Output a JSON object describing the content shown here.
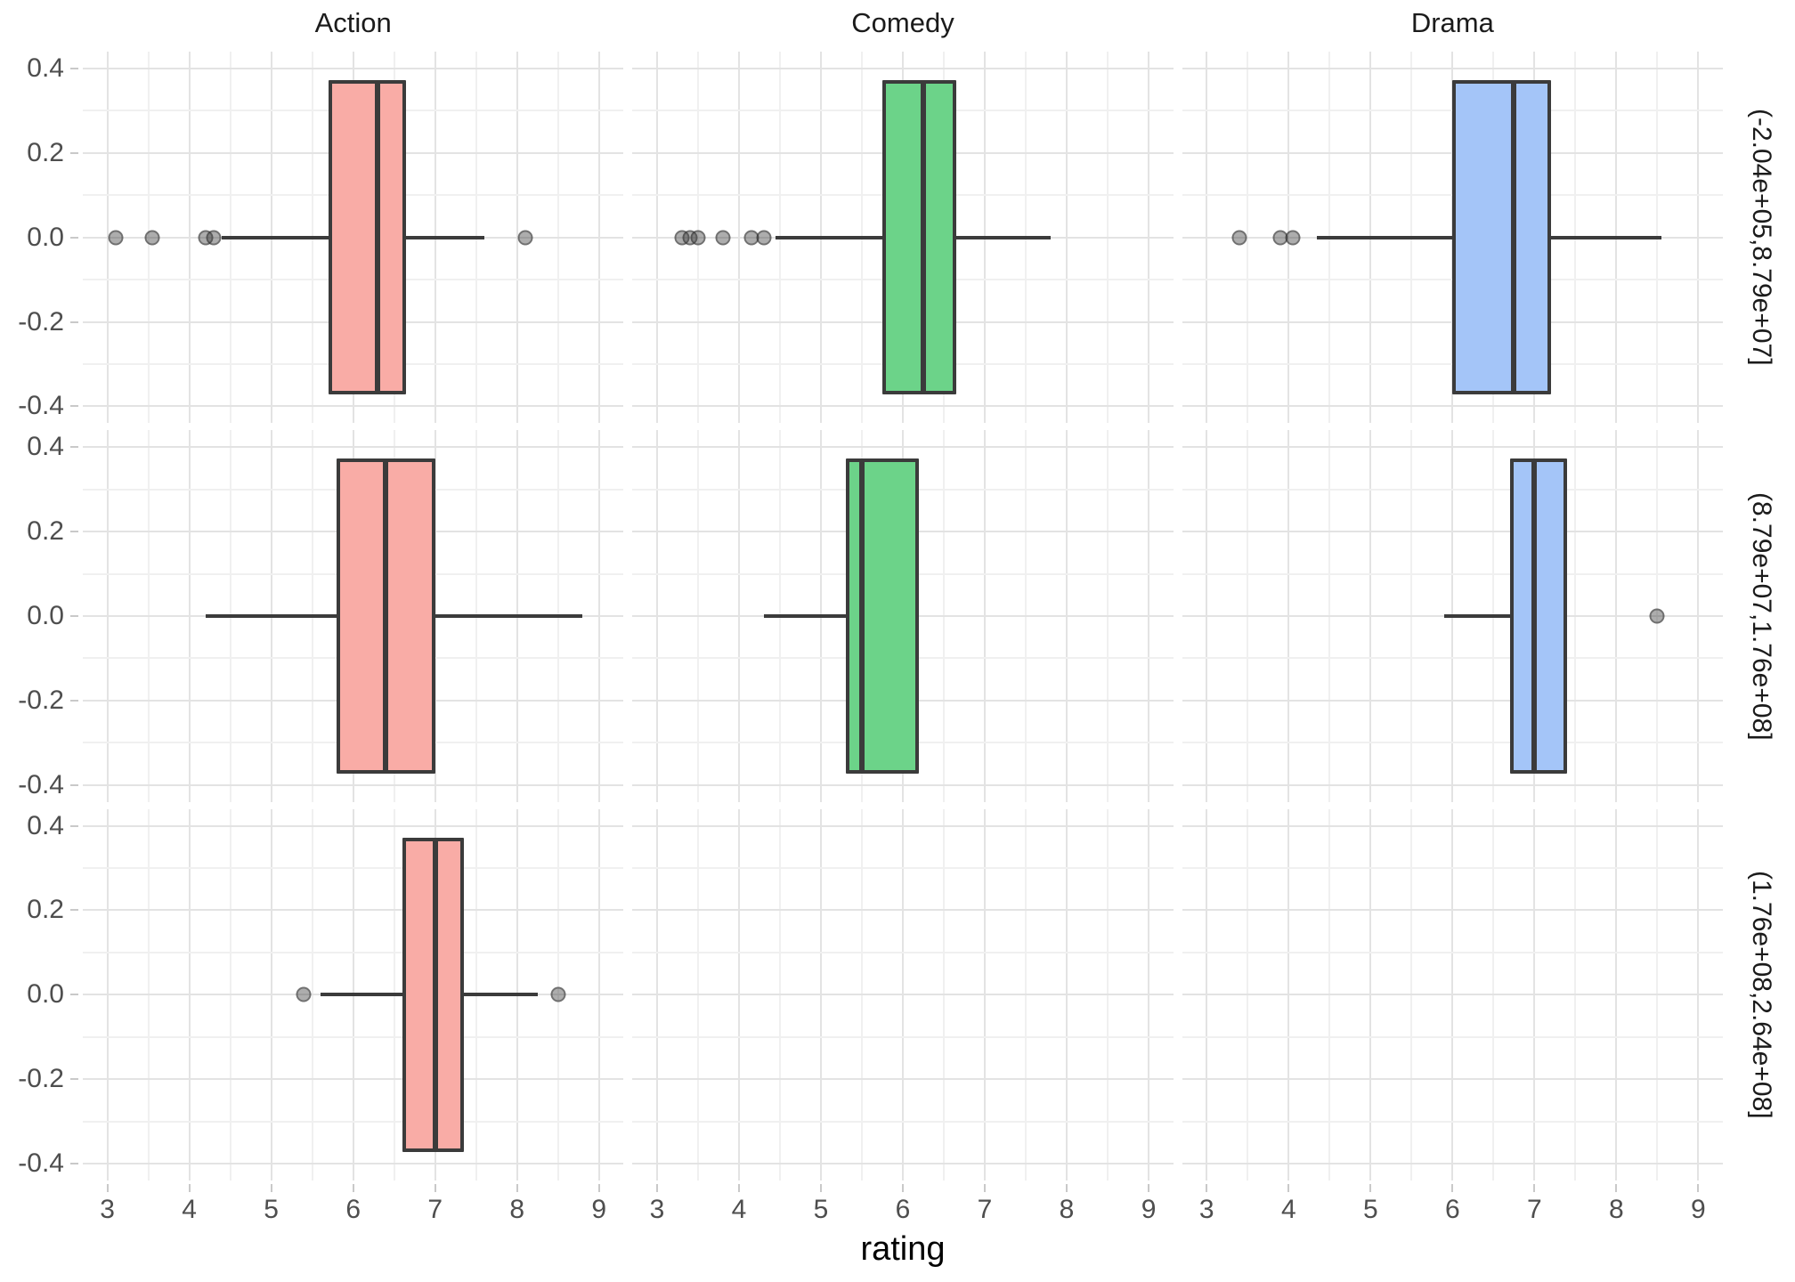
{
  "figure": {
    "facet_column_titles": [
      "Action",
      "Comedy",
      "Drama"
    ],
    "facet_row_labels": [
      "(-2.04e+05,8.79e+07]",
      "(8.79e+07,1.76e+08]",
      "(1.76e+08,2.64e+08]"
    ],
    "x_axis_title": "rating"
  },
  "chart_data": {
    "type": "boxplot",
    "orientation": "horizontal",
    "title": "",
    "xlabel": "rating",
    "ylabel": "",
    "x_range": [
      2.7,
      9.3
    ],
    "x_ticks": [
      3,
      4,
      5,
      6,
      7,
      8,
      9
    ],
    "x_minor_step": 0.5,
    "y_range": [
      -0.44,
      0.44
    ],
    "y_ticks": [
      0.4,
      0.2,
      0.0,
      -0.2,
      -0.4
    ],
    "y_minor_step": 0.1,
    "grid": "major and minor gridlines, light gray on white",
    "legend": "none",
    "facet_columns": [
      "Action",
      "Comedy",
      "Drama"
    ],
    "facet_rows": [
      "(-2.04e+05,8.79e+07]",
      "(8.79e+07,1.76e+08]",
      "(1.76e+08,2.64e+08]"
    ],
    "fill_colors": {
      "Action": "#f9aca6",
      "Comedy": "#6cd389",
      "Drama": "#a4c5f8"
    },
    "box_border_color": "#3b3b3b",
    "outlier_color": "#8c8c8c",
    "cells": [
      [
        {
          "genre": "Action",
          "budget_bin": "(-2.04e+05,8.79e+07]",
          "whisker_low": 4.4,
          "q1": 5.7,
          "median": 6.3,
          "q3": 6.65,
          "whisker_high": 7.6,
          "outliers": [
            3.1,
            3.55,
            4.2,
            4.3,
            8.1
          ]
        },
        {
          "genre": "Comedy",
          "budget_bin": "(-2.04e+05,8.79e+07]",
          "whisker_low": 4.45,
          "q1": 5.75,
          "median": 6.25,
          "q3": 6.65,
          "whisker_high": 7.8,
          "outliers": [
            3.3,
            3.4,
            3.5,
            3.8,
            4.15,
            4.3
          ]
        },
        {
          "genre": "Drama",
          "budget_bin": "(-2.04e+05,8.79e+07]",
          "whisker_low": 4.35,
          "q1": 6.0,
          "median": 6.75,
          "q3": 7.2,
          "whisker_high": 8.55,
          "outliers": [
            3.4,
            3.9,
            4.05
          ]
        }
      ],
      [
        {
          "genre": "Action",
          "budget_bin": "(8.79e+07,1.76e+08]",
          "whisker_low": 4.2,
          "q1": 5.8,
          "median": 6.4,
          "q3": 7.0,
          "whisker_high": 8.8,
          "outliers": []
        },
        {
          "genre": "Comedy",
          "budget_bin": "(8.79e+07,1.76e+08]",
          "whisker_low": 4.3,
          "q1": 5.3,
          "median": 5.5,
          "q3": 6.2,
          "whisker_high": 6.2,
          "outliers": []
        },
        {
          "genre": "Drama",
          "budget_bin": "(8.79e+07,1.76e+08]",
          "whisker_low": 5.9,
          "q1": 6.7,
          "median": 7.0,
          "q3": 7.4,
          "whisker_high": 7.4,
          "outliers": [
            8.5
          ]
        }
      ],
      [
        {
          "genre": "Action",
          "budget_bin": "(1.76e+08,2.64e+08]",
          "whisker_low": 5.6,
          "q1": 6.6,
          "median": 7.0,
          "q3": 7.35,
          "whisker_high": 8.25,
          "outliers": [
            5.4,
            8.5
          ]
        },
        null,
        null
      ]
    ]
  }
}
